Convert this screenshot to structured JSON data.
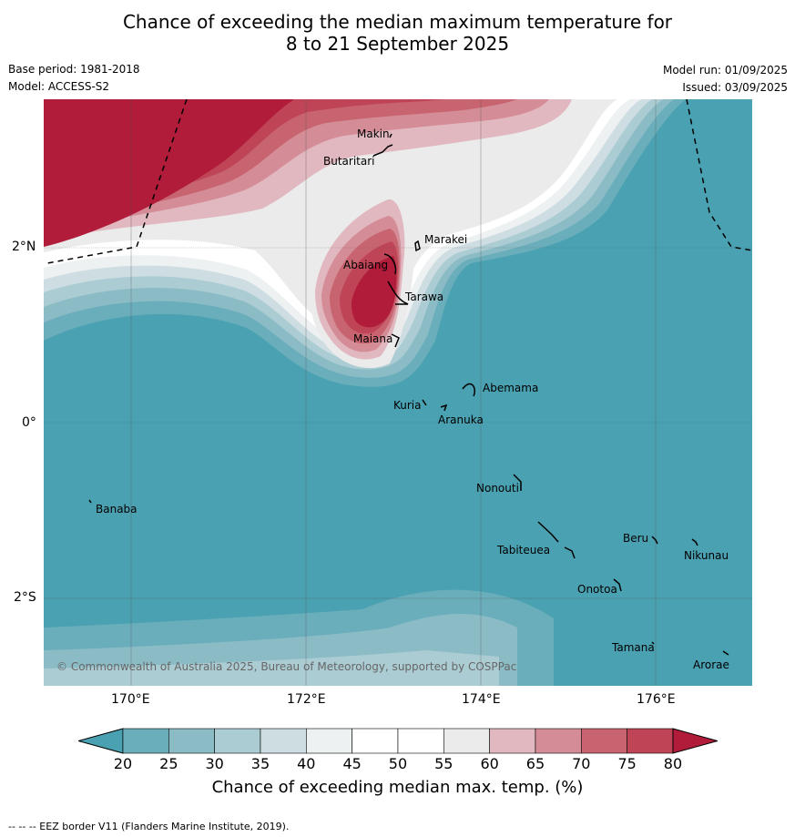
{
  "header": {
    "title_line1": "Chance of exceeding the median maximum temperature for",
    "title_line2": "8 to 21 September 2025",
    "base_period": "Base period: 1981-2018",
    "model": "Model: ACCESS-S2",
    "model_run": "Model run: 01/09/2025",
    "issued": "Issued: 03/09/2025"
  },
  "axes": {
    "lon_labels": [
      "170°E",
      "172°E",
      "174°E",
      "176°E"
    ],
    "lat_labels": [
      "2°N",
      "0°",
      "2°S"
    ]
  },
  "places": [
    {
      "id": "makin",
      "name": "Makin"
    },
    {
      "id": "butaritari",
      "name": "Butaritari"
    },
    {
      "id": "marakei",
      "name": "Marakei"
    },
    {
      "id": "abaiang",
      "name": "Abaiang"
    },
    {
      "id": "tarawa",
      "name": "Tarawa"
    },
    {
      "id": "maiana",
      "name": "Maiana"
    },
    {
      "id": "abemama",
      "name": "Abemama"
    },
    {
      "id": "kuria",
      "name": "Kuria"
    },
    {
      "id": "aranuka",
      "name": "Aranuka"
    },
    {
      "id": "banaba",
      "name": "Banaba"
    },
    {
      "id": "nonouti",
      "name": "Nonouti"
    },
    {
      "id": "beru",
      "name": "Beru"
    },
    {
      "id": "nikunau",
      "name": "Nikunau"
    },
    {
      "id": "tabiteuea",
      "name": "Tabiteuea"
    },
    {
      "id": "onotoa",
      "name": "Onotoa"
    },
    {
      "id": "tamana",
      "name": "Tamana"
    },
    {
      "id": "arorae",
      "name": "Arorae"
    }
  ],
  "copyright": "© Commonwealth of Australia 2025, Bureau of Meteorology, supported by COSPPac",
  "colorbar": {
    "ticks": [
      "20",
      "25",
      "30",
      "35",
      "40",
      "45",
      "50",
      "55",
      "60",
      "65",
      "70",
      "75",
      "80"
    ],
    "label": "Chance of exceeding median max. temp. (%)",
    "colors": [
      "#4aa1b2",
      "#6aaebb",
      "#8bbcc6",
      "#acccd3",
      "#cddde1",
      "#eef1f2",
      "#ffffff",
      "#ffffff",
      "#ebebeb",
      "#e2b8c0",
      "#d48c97",
      "#c8646f",
      "#bf4556",
      "#b01c3a"
    ]
  },
  "footer": "--  --  -- EEZ border V11 (Flanders Marine Institute, 2019)."
}
